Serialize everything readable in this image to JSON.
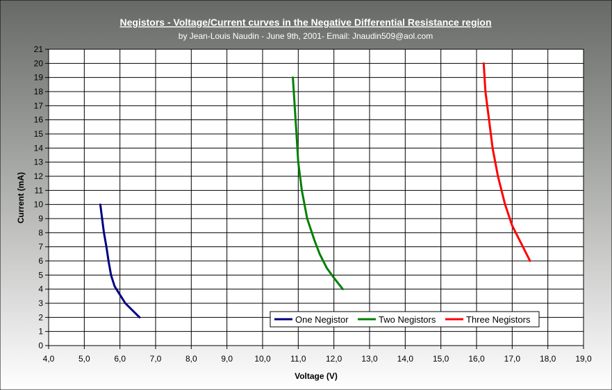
{
  "chart_data": {
    "type": "line",
    "title": "Negistors -  Voltage/Current curves in the Negative Differential Resistance region ",
    "subtitle": "by Jean-Louis Naudin - June 9th, 2001- Email: Jnaudin509@aol.com",
    "xlabel": "Voltage (V)",
    "ylabel": "Current (mA)",
    "xlim": [
      4.0,
      19.0
    ],
    "ylim": [
      0,
      21
    ],
    "x_ticks": [
      "4,0",
      "5,0",
      "6,0",
      "7,0",
      "8,0",
      "9,0",
      "10,0",
      "11,0",
      "12,0",
      "13,0",
      "14,0",
      "15,0",
      "16,0",
      "17,0",
      "18,0",
      "19,0"
    ],
    "y_ticks": [
      "0",
      "1",
      "2",
      "3",
      "4",
      "5",
      "6",
      "7",
      "8",
      "9",
      "10",
      "11",
      "12",
      "13",
      "14",
      "15",
      "16",
      "17",
      "18",
      "19",
      "20",
      "21"
    ],
    "grid": true,
    "legend_position": "bottom-right",
    "series": [
      {
        "name": "One Negistor",
        "color": "#000080",
        "points": [
          [
            5.45,
            10
          ],
          [
            5.5,
            9
          ],
          [
            5.55,
            8
          ],
          [
            5.62,
            7
          ],
          [
            5.68,
            6
          ],
          [
            5.75,
            5
          ],
          [
            5.85,
            4.2
          ],
          [
            6.0,
            3.6
          ],
          [
            6.15,
            3.0
          ],
          [
            6.35,
            2.5
          ],
          [
            6.55,
            2.0
          ]
        ]
      },
      {
        "name": "Two Negistors",
        "color": "#008000",
        "points": [
          [
            10.85,
            19
          ],
          [
            10.9,
            17
          ],
          [
            10.95,
            15
          ],
          [
            11.0,
            13
          ],
          [
            11.1,
            11
          ],
          [
            11.25,
            9
          ],
          [
            11.45,
            7.5
          ],
          [
            11.6,
            6.5
          ],
          [
            11.8,
            5.5
          ],
          [
            12.0,
            4.8
          ],
          [
            12.25,
            4.0
          ]
        ]
      },
      {
        "name": "Three Negistors",
        "color": "#ff0000",
        "points": [
          [
            16.2,
            20
          ],
          [
            16.25,
            18
          ],
          [
            16.35,
            16
          ],
          [
            16.45,
            14
          ],
          [
            16.6,
            12
          ],
          [
            16.8,
            10
          ],
          [
            17.0,
            8.5
          ],
          [
            17.2,
            7.5
          ],
          [
            17.5,
            6.0
          ]
        ]
      }
    ]
  },
  "colors": {
    "background_top": "#6b6e6b",
    "background_bottom": "#ffffff",
    "plot_area": "#ffffff",
    "grid": "#000000"
  }
}
